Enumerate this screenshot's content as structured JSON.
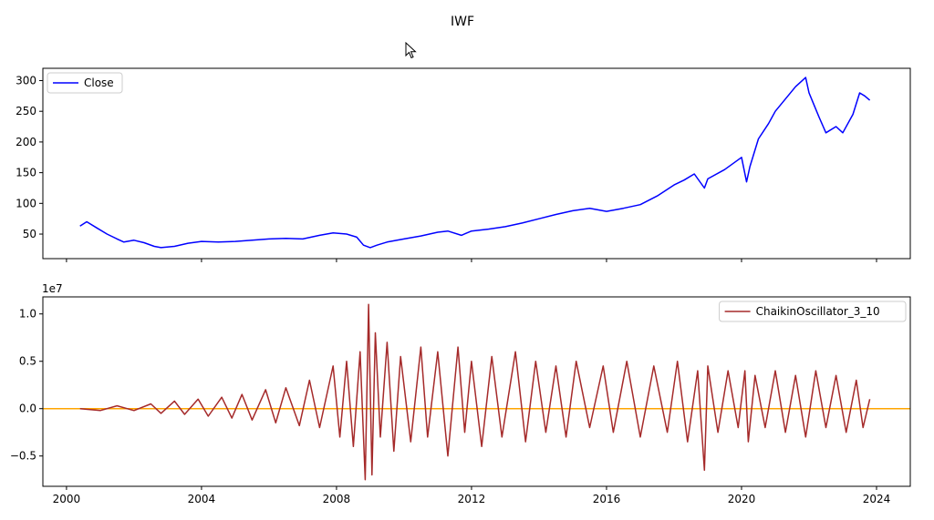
{
  "figure_title": "IWF",
  "colors": {
    "close_line": "#0000ff",
    "oscillator_line": "#a52a2a",
    "zero_line": "#ffa500",
    "axes": "#000000",
    "background": "#ffffff"
  },
  "chart_data": [
    {
      "type": "line",
      "title": "",
      "xlabel": "",
      "ylabel": "",
      "x_ticks": [
        "2000",
        "2004",
        "2008",
        "2012",
        "2016",
        "2020",
        "2024"
      ],
      "x_tick_values": [
        2000,
        2004,
        2008,
        2012,
        2016,
        2020,
        2024
      ],
      "show_x_tick_labels": false,
      "xlim": [
        1999.3,
        2025.0
      ],
      "y_ticks": [
        "50",
        "100",
        "150",
        "200",
        "250",
        "300"
      ],
      "y_tick_values": [
        50,
        100,
        150,
        200,
        250,
        300
      ],
      "ylim": [
        10,
        320
      ],
      "grid": false,
      "legend": "upper left",
      "series": [
        {
          "name": "Close",
          "color": "#0000ff",
          "x": [
            2000.4,
            2000.6,
            2000.9,
            2001.2,
            2001.5,
            2001.7,
            2002.0,
            2002.3,
            2002.6,
            2002.8,
            2003.2,
            2003.6,
            2004.0,
            2004.5,
            2005.0,
            2005.5,
            2006.0,
            2006.5,
            2007.0,
            2007.5,
            2007.9,
            2008.3,
            2008.6,
            2008.8,
            2009.0,
            2009.2,
            2009.5,
            2010.0,
            2010.5,
            2011.0,
            2011.3,
            2011.7,
            2012.0,
            2012.5,
            2013.0,
            2013.5,
            2014.0,
            2014.5,
            2015.0,
            2015.5,
            2016.0,
            2016.5,
            2017.0,
            2017.5,
            2018.0,
            2018.3,
            2018.6,
            2018.9,
            2019.0,
            2019.5,
            2020.0,
            2020.15,
            2020.25,
            2020.5,
            2020.8,
            2021.0,
            2021.3,
            2021.6,
            2021.9,
            2022.0,
            2022.3,
            2022.5,
            2022.8,
            2023.0,
            2023.3,
            2023.5,
            2023.65,
            2023.8
          ],
          "values": [
            63,
            70,
            60,
            50,
            42,
            37,
            40,
            36,
            30,
            28,
            30,
            35,
            38,
            37,
            38,
            40,
            42,
            43,
            42,
            48,
            52,
            50,
            45,
            32,
            28,
            32,
            37,
            42,
            47,
            53,
            55,
            48,
            55,
            58,
            62,
            68,
            75,
            82,
            88,
            92,
            87,
            92,
            98,
            112,
            130,
            138,
            148,
            125,
            140,
            155,
            175,
            135,
            160,
            205,
            230,
            250,
            270,
            290,
            305,
            280,
            240,
            215,
            225,
            215,
            245,
            280,
            275,
            268
          ]
        }
      ]
    },
    {
      "type": "line",
      "title": "",
      "xlabel": "",
      "ylabel": "",
      "y_offset_label": "1e7",
      "x_ticks": [
        "2000",
        "2004",
        "2008",
        "2012",
        "2016",
        "2020",
        "2024"
      ],
      "x_tick_values": [
        2000,
        2004,
        2008,
        2012,
        2016,
        2020,
        2024
      ],
      "xlim": [
        1999.3,
        2025.0
      ],
      "y_ticks": [
        "−0.5",
        "0.0",
        "0.5",
        "1.0"
      ],
      "y_tick_values": [
        -0.5,
        0.0,
        0.5,
        1.0
      ],
      "ylim": [
        -0.82,
        1.18
      ],
      "grid": false,
      "legend": "upper right",
      "hline": 0.0,
      "series": [
        {
          "name": "ChaikinOscillator_3_10",
          "color": "#a52a2a",
          "x": [
            2000.4,
            2001.0,
            2001.5,
            2002.0,
            2002.5,
            2002.8,
            2003.2,
            2003.5,
            2003.9,
            2004.2,
            2004.6,
            2004.9,
            2005.2,
            2005.5,
            2005.9,
            2006.2,
            2006.5,
            2006.9,
            2007.2,
            2007.5,
            2007.9,
            2008.1,
            2008.3,
            2008.5,
            2008.7,
            2008.85,
            2008.95,
            2009.05,
            2009.15,
            2009.3,
            2009.5,
            2009.7,
            2009.9,
            2010.2,
            2010.5,
            2010.7,
            2011.0,
            2011.3,
            2011.6,
            2011.8,
            2012.0,
            2012.3,
            2012.6,
            2012.9,
            2013.3,
            2013.6,
            2013.9,
            2014.2,
            2014.5,
            2014.8,
            2015.1,
            2015.5,
            2015.9,
            2016.2,
            2016.6,
            2017.0,
            2017.4,
            2017.8,
            2018.1,
            2018.4,
            2018.7,
            2018.9,
            2019.0,
            2019.3,
            2019.6,
            2019.9,
            2020.1,
            2020.2,
            2020.4,
            2020.7,
            2021.0,
            2021.3,
            2021.6,
            2021.9,
            2022.2,
            2022.5,
            2022.8,
            2023.1,
            2023.4,
            2023.6,
            2023.8
          ],
          "values": [
            0.0,
            -0.02,
            0.03,
            -0.02,
            0.05,
            -0.05,
            0.08,
            -0.06,
            0.1,
            -0.08,
            0.12,
            -0.1,
            0.15,
            -0.12,
            0.2,
            -0.15,
            0.22,
            -0.18,
            0.3,
            -0.2,
            0.45,
            -0.3,
            0.5,
            -0.4,
            0.6,
            -0.75,
            1.1,
            -0.7,
            0.8,
            -0.3,
            0.7,
            -0.45,
            0.55,
            -0.35,
            0.65,
            -0.3,
            0.6,
            -0.5,
            0.65,
            -0.25,
            0.5,
            -0.4,
            0.55,
            -0.3,
            0.6,
            -0.35,
            0.5,
            -0.25,
            0.45,
            -0.3,
            0.5,
            -0.2,
            0.45,
            -0.25,
            0.5,
            -0.3,
            0.45,
            -0.25,
            0.5,
            -0.35,
            0.4,
            -0.65,
            0.45,
            -0.25,
            0.4,
            -0.2,
            0.4,
            -0.35,
            0.35,
            -0.2,
            0.4,
            -0.25,
            0.35,
            -0.3,
            0.4,
            -0.2,
            0.35,
            -0.25,
            0.3,
            -0.2,
            0.1
          ]
        }
      ]
    }
  ]
}
